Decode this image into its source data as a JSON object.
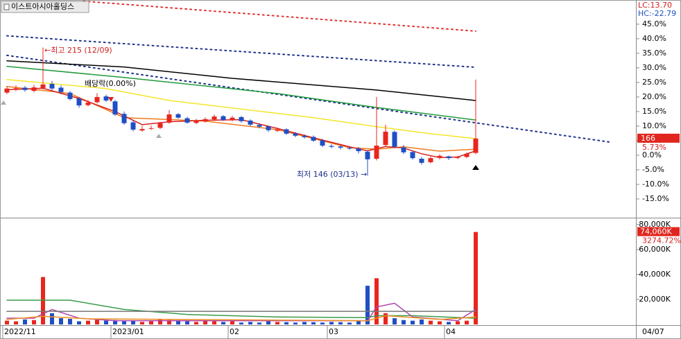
{
  "chart_data": [
    {
      "type": "candlestick",
      "title": "이스트아시아홀딩스",
      "categories": [
        "2022/11",
        null,
        null,
        null,
        null,
        null,
        null,
        null,
        null,
        null,
        null,
        null,
        "2023/01",
        null,
        null,
        null,
        null,
        null,
        null,
        null,
        null,
        null,
        null,
        null,
        null,
        "02",
        null,
        null,
        null,
        null,
        null,
        null,
        null,
        null,
        null,
        null,
        "03",
        null,
        null,
        null,
        null,
        null,
        null,
        null,
        null,
        null,
        null,
        null,
        null,
        "04",
        null,
        null,
        null
      ],
      "last_date": "04/07",
      "open": [
        21.5,
        22.5,
        23.2,
        22.1,
        23.1,
        24.5,
        23.2,
        21.5,
        19.5,
        17.2,
        18.2,
        20.2,
        18.5,
        14.2,
        11.3,
        8.5,
        9.2,
        9.4,
        11.2,
        14.1,
        12.7,
        11.1,
        11.6,
        12.3,
        13.4,
        12,
        13.1,
        11.9,
        10.4,
        9.9,
        8.4,
        8.9,
        7.5,
        6.6,
        6.3,
        5.1,
        3.2,
        3,
        2.5,
        2.3,
        1.2,
        -1.2,
        3.5,
        8,
        2.7,
        1.1,
        -1.2,
        -2.4,
        -0.9,
        -0.4,
        -0.9,
        -0.6,
        0.8
      ],
      "high": [
        23.8,
        24,
        23.8,
        24.2,
        37,
        25.5,
        24,
        22,
        20,
        19,
        21.3,
        20.8,
        19,
        15,
        12,
        10,
        10.2,
        11.5,
        15.5,
        14.5,
        13.2,
        12.5,
        13,
        14,
        13.8,
        13.5,
        13.5,
        12.3,
        11,
        10.2,
        9.5,
        9.3,
        8,
        7.2,
        6.8,
        5.6,
        3.8,
        3.5,
        3,
        2.8,
        1.8,
        20,
        10.5,
        8.5,
        3.5,
        1.6,
        -0.6,
        -0.4,
        0.3,
        -0.1,
        -0.2,
        0.9,
        26
      ],
      "low": [
        21,
        22,
        21.8,
        21.6,
        22.6,
        22.3,
        21,
        18.8,
        16.3,
        16.8,
        17.8,
        18.3,
        13.5,
        10.5,
        8.2,
        8.1,
        8.7,
        9,
        10.8,
        12.5,
        10.8,
        10.7,
        11.2,
        11.8,
        11.8,
        11.6,
        11.2,
        10,
        9.3,
        8,
        8,
        7,
        6.2,
        5.7,
        4.6,
        2.8,
        2.4,
        2,
        1.9,
        0.6,
        -7,
        -1.8,
        3,
        2.5,
        0.4,
        -1.5,
        -3.2,
        -2.8,
        -1.4,
        -1.6,
        -1.3,
        -1,
        0.3
      ],
      "close": [
        22.9,
        23,
        22.4,
        23.3,
        24.3,
        22.9,
        21.7,
        19.3,
        17.1,
        18.1,
        20,
        18.8,
        14,
        11,
        8.8,
        9,
        9.3,
        11,
        14,
        12.9,
        11.2,
        11.7,
        12.4,
        13.3,
        12.1,
        12.9,
        11.7,
        10.5,
        9.8,
        8.6,
        8.8,
        7.4,
        6.7,
        6.2,
        5,
        3.3,
        2.9,
        2.6,
        2.4,
        1.4,
        -1.4,
        3.3,
        8.1,
        2.9,
        1,
        -1,
        -2.6,
        -1,
        -0.2,
        -1,
        -0.7,
        0.5,
        5.73
      ],
      "up_color": "#e8261e",
      "down_color": "#1f4fc4",
      "ylim": [
        -21.2,
        53.3
      ],
      "yticks": [
        {
          "value": 45,
          "label": "45.0%"
        },
        {
          "value": 40,
          "label": "40.0%"
        },
        {
          "value": 35,
          "label": "35.0%"
        },
        {
          "value": 30,
          "label": "30.0%"
        },
        {
          "value": 25,
          "label": "25.0%"
        },
        {
          "value": 20,
          "label": "20.0%"
        },
        {
          "value": 15,
          "label": "15.0%"
        },
        {
          "value": 10,
          "label": "10.0%"
        },
        {
          "value": 5,
          "label": "5.0%"
        },
        {
          "value": 0,
          "label": "0.0%"
        },
        {
          "value": -5,
          "label": "-5.0%"
        },
        {
          "value": -10,
          "label": "-10.0%"
        },
        {
          "value": -15,
          "label": "-15.0%"
        }
      ],
      "lines": [
        {
          "color": "#000000",
          "x": [
            0,
            13,
            25,
            41,
            52
          ],
          "values": [
            32.4,
            30.3,
            26.4,
            22.4,
            18.8
          ]
        },
        {
          "color": "#1f9a3a",
          "x": [
            0,
            13,
            30,
            41,
            52
          ],
          "values": [
            30.5,
            26.7,
            21.2,
            16.4,
            12.1
          ]
        },
        {
          "color": "#f2e629",
          "x": [
            0,
            11,
            18,
            34,
            41,
            47,
            52
          ],
          "values": [
            26,
            22.9,
            18.8,
            12.9,
            9.8,
            7.4,
            5.7
          ]
        },
        {
          "color": "#f07a1a",
          "x": [
            0,
            7,
            13,
            17,
            22,
            30,
            38,
            41,
            44,
            48,
            52
          ],
          "values": [
            23.6,
            21.2,
            12.9,
            12.4,
            11.7,
            8.8,
            2.6,
            2.1,
            2.9,
            1.4,
            2.1
          ]
        },
        {
          "color": "#d81e1e",
          "x": [
            0,
            4,
            8,
            12,
            15,
            18,
            22,
            26,
            30,
            34,
            38,
            40,
            42,
            44,
            46,
            48,
            50,
            52
          ],
          "values": [
            22.5,
            23,
            19.5,
            15,
            10.5,
            11.5,
            12,
            12.2,
            9.2,
            6,
            2.9,
            1.5,
            3,
            2.5,
            0.5,
            -0.8,
            -0.6,
            1.5
          ]
        }
      ],
      "trendlines": [
        {
          "color": "#e03030",
          "x": [
            8.5,
            52
          ],
          "values": [
            52.9,
            42.6
          ]
        },
        {
          "color": "#1c2f8a",
          "x": [
            0,
            52
          ],
          "values": [
            41,
            30.2
          ]
        },
        {
          "color": "#1c2f8a",
          "x": [
            0,
            66.9
          ],
          "values": [
            34.3,
            4.5
          ]
        }
      ],
      "high_note": "←최고 215 (12/09)",
      "dividend_note": "배당락(0.00%)",
      "low_note": "최저 146 (03/13) →",
      "lc_label": "LC:13.70",
      "hc_label": "HC:-22.79",
      "price_tag": "166",
      "change_tag": "5.73%"
    },
    {
      "type": "bar",
      "values": [
        3000,
        2500,
        4000,
        3500,
        38000,
        9000,
        5000,
        4500,
        2500,
        3000,
        4000,
        3000,
        3500,
        2500,
        3000,
        2000,
        2500,
        4500,
        3500,
        3000,
        2500,
        2000,
        3000,
        2500,
        2000,
        2500,
        1500,
        2000,
        1500,
        2500,
        2000,
        1800,
        1500,
        2000,
        1800,
        1500,
        2000,
        1800,
        1500,
        2500,
        31000,
        37000,
        9000,
        5000,
        3500,
        3000,
        4000,
        3000,
        2500,
        2000,
        2500,
        3000,
        74060
      ],
      "current_label": "74,060K",
      "change_tag": "3274.72%",
      "ylim": [
        0,
        84400
      ],
      "yticks": [
        {
          "value": 20000,
          "label": "20,000K"
        },
        {
          "value": 40000,
          "label": "40,000K"
        },
        {
          "value": 60000,
          "label": "60,000K"
        },
        {
          "value": 80000,
          "label": "80,000K"
        }
      ],
      "lines": [
        {
          "color": "#3a9a4a",
          "x": [
            0,
            7,
            13,
            20,
            30,
            40,
            41,
            45,
            52
          ],
          "values": [
            19400,
            19400,
            12000,
            8000,
            6000,
            5500,
            7000,
            7000,
            5000
          ]
        },
        {
          "color": "#b040b0",
          "x": [
            0,
            3,
            5,
            8,
            12,
            40,
            41,
            43,
            45,
            50,
            52
          ],
          "values": [
            5000,
            5000,
            12000,
            5000,
            3000,
            3000,
            14000,
            17000,
            6000,
            3000,
            12000
          ]
        },
        {
          "color": "#f09020",
          "x": [
            0,
            4,
            9,
            40,
            42,
            48,
            52
          ],
          "values": [
            4000,
            6500,
            4500,
            3000,
            7000,
            4000,
            6000
          ]
        },
        {
          "color": "#777777",
          "x": [
            0,
            52
          ],
          "values": [
            10500,
            10500
          ]
        }
      ]
    }
  ]
}
